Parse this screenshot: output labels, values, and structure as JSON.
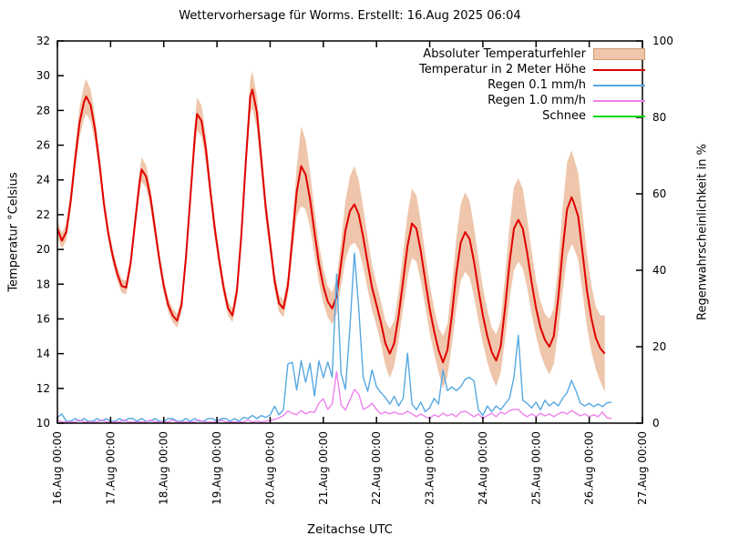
{
  "title": "Wettervorhersage für Worms. Erstellt: 16.Aug 2025 06:04",
  "axes": {
    "left_label": "Temperatur °Celsius",
    "right_label": "Regenwahrscheinlichkeit in %",
    "x_label": "Zeitachse UTC",
    "left_ticks": [
      10,
      12,
      14,
      16,
      18,
      20,
      22,
      24,
      26,
      28,
      30,
      32
    ],
    "right_ticks": [
      0,
      20,
      40,
      60,
      80,
      100
    ],
    "x_ticks": [
      "16.Aug 00:00",
      "17.Aug 00:00",
      "18.Aug 00:00",
      "19.Aug 00:00",
      "20.Aug 00:00",
      "21.Aug 00:00",
      "22.Aug 00:00",
      "23.Aug 00:00",
      "24.Aug 00:00",
      "25.Aug 00:00",
      "26.Aug 00:00",
      "27.Aug 00:00"
    ],
    "left_range": [
      10,
      32
    ],
    "right_range": [
      0,
      100
    ],
    "x_range_hours": [
      0,
      264
    ],
    "grid": false
  },
  "legend": [
    {
      "label": "Absoluter Temperaturfehler",
      "type": "band",
      "color": "#efc6ab"
    },
    {
      "label": "Temperatur in 2 Meter Höhe",
      "type": "line",
      "color": "#e00000"
    },
    {
      "label": "Regen 0.1 mm/h",
      "type": "line",
      "color": "#56a8e2"
    },
    {
      "label": "Regen 1.0 mm/h",
      "type": "line",
      "color": "#ee82ee"
    },
    {
      "label": "Schnee",
      "type": "line",
      "color": "#00d800"
    }
  ],
  "chart_data": {
    "type": "line",
    "title": "Wettervorhersage für Worms. Erstellt: 16.Aug 2025 06:04",
    "xlabel": "Zeitachse UTC",
    "ylabel_left": "Temperatur °Celsius",
    "ylabel_right": "Regenwahrscheinlichkeit in %",
    "x_unit": "hours since 16.Aug 00:00 UTC",
    "temperature": {
      "name": "Temperatur in 2 Meter Höhe",
      "axis": "left",
      "color": "#e00000",
      "band_name": "Absoluter Temperaturfehler",
      "band_color": "#efc6ab",
      "t": [
        0,
        2,
        4,
        6,
        8,
        10,
        12,
        13,
        15,
        17,
        19,
        21,
        23,
        25,
        27,
        29,
        31,
        33,
        35,
        37,
        38,
        40,
        42,
        44,
        46,
        48,
        50,
        52,
        54,
        56,
        58,
        60,
        62,
        63,
        65,
        67,
        69,
        71,
        73,
        75,
        77,
        79,
        81,
        83,
        85,
        87,
        88,
        90,
        92,
        94,
        96,
        98,
        100,
        102,
        104,
        106,
        108,
        110,
        112,
        114,
        116,
        118,
        120,
        122,
        124,
        126,
        128,
        130,
        132,
        134,
        136,
        138,
        140,
        142,
        144,
        146,
        148,
        150,
        152,
        154,
        156,
        158,
        160,
        162,
        164,
        166,
        168,
        170,
        172,
        174,
        176,
        178,
        180,
        182,
        184,
        186,
        188,
        190,
        192,
        194,
        196,
        198,
        200,
        202,
        204,
        206,
        208,
        210,
        212,
        214,
        216,
        218,
        220,
        222,
        224,
        226,
        228,
        230,
        232,
        233,
        235,
        237,
        239,
        241,
        243,
        245,
        247
      ],
      "values": [
        21.2,
        20.5,
        21.0,
        22.8,
        25.2,
        27.3,
        28.5,
        28.8,
        28.3,
        26.9,
        24.9,
        22.6,
        20.9,
        19.6,
        18.6,
        17.9,
        17.8,
        19.2,
        21.5,
        23.8,
        24.6,
        24.2,
        23.0,
        21.2,
        19.4,
        17.9,
        16.8,
        16.2,
        15.9,
        16.8,
        19.5,
        23.0,
        26.5,
        27.8,
        27.4,
        25.8,
        23.4,
        21.2,
        19.4,
        17.8,
        16.6,
        16.2,
        17.6,
        20.8,
        25.0,
        28.8,
        29.2,
        27.9,
        25.2,
        22.4,
        20.3,
        18.2,
        16.9,
        16.6,
        17.9,
        20.6,
        23.3,
        24.8,
        24.3,
        22.9,
        21.0,
        19.2,
        17.9,
        17.0,
        16.6,
        17.3,
        19.2,
        21.1,
        22.2,
        22.6,
        22.0,
        20.7,
        19.2,
        17.8,
        16.8,
        15.8,
        14.6,
        14.0,
        14.6,
        16.2,
        18.2,
        20.2,
        21.5,
        21.2,
        19.9,
        18.2,
        16.6,
        15.3,
        14.2,
        13.5,
        14.2,
        16.2,
        18.6,
        20.4,
        21.0,
        20.6,
        19.3,
        17.7,
        16.2,
        15.0,
        14.1,
        13.6,
        14.4,
        16.6,
        19.2,
        21.2,
        21.7,
        21.2,
        19.8,
        18.1,
        16.6,
        15.5,
        14.8,
        14.4,
        15.0,
        17.2,
        20.0,
        22.3,
        23.0,
        22.7,
        21.9,
        19.8,
        17.6,
        16.0,
        14.9,
        14.3,
        14.0
      ],
      "halfwidth": [
        0.5,
        0.45,
        0.5,
        0.6,
        0.7,
        0.85,
        0.95,
        1.0,
        0.9,
        0.75,
        0.6,
        0.5,
        0.45,
        0.4,
        0.4,
        0.4,
        0.4,
        0.45,
        0.55,
        0.65,
        0.7,
        0.65,
        0.6,
        0.5,
        0.45,
        0.4,
        0.4,
        0.4,
        0.4,
        0.45,
        0.55,
        0.7,
        0.85,
        0.95,
        0.9,
        0.8,
        0.65,
        0.55,
        0.5,
        0.45,
        0.4,
        0.4,
        0.5,
        0.6,
        0.8,
        1.0,
        1.05,
        0.95,
        0.8,
        0.7,
        0.6,
        0.55,
        0.5,
        0.5,
        0.6,
        0.9,
        1.4,
        2.3,
        2.0,
        1.6,
        1.3,
        1.1,
        1.0,
        0.9,
        0.9,
        1.0,
        1.3,
        1.7,
        2.0,
        2.2,
        2.0,
        1.7,
        1.5,
        1.3,
        1.2,
        1.2,
        1.3,
        1.4,
        1.3,
        1.4,
        1.6,
        1.8,
        2.0,
        1.9,
        1.7,
        1.5,
        1.4,
        1.3,
        1.3,
        1.5,
        1.5,
        1.7,
        2.0,
        2.2,
        2.3,
        2.2,
        2.0,
        1.8,
        1.6,
        1.5,
        1.4,
        1.5,
        1.5,
        1.8,
        2.1,
        2.4,
        2.4,
        2.3,
        2.0,
        1.8,
        1.6,
        1.5,
        1.5,
        1.6,
        1.6,
        1.9,
        2.4,
        2.7,
        2.7,
        2.6,
        2.5,
        2.3,
        2.1,
        1.9,
        1.8,
        1.9,
        2.2
      ]
    },
    "rain_01mm": {
      "name": "Regen 0.1 mm/h",
      "axis": "right",
      "color": "#56a8e2",
      "t_start": 0,
      "t_step": 2,
      "values": [
        1.5,
        2.4,
        0.5,
        0.5,
        1.2,
        0.5,
        1.2,
        0.5,
        0.5,
        1.2,
        0.5,
        1.2,
        0.5,
        0.5,
        1.2,
        0.5,
        1.2,
        1.2,
        0.5,
        1.2,
        0.5,
        0.5,
        1.2,
        0.5,
        0.5,
        1.2,
        1.2,
        0.5,
        0.5,
        1.2,
        0.5,
        1.2,
        0.5,
        0.5,
        1.2,
        1.2,
        0.5,
        1.2,
        1.2,
        0.5,
        1.2,
        0.5,
        1.5,
        1.2,
        2.0,
        1.2,
        2.0,
        1.5,
        2.2,
        4.4,
        2.2,
        3.5,
        15.5,
        15.9,
        8.7,
        16.3,
        10.7,
        15.7,
        7.1,
        16.3,
        11.9,
        16.0,
        12.0,
        39.0,
        13.0,
        8.8,
        25.0,
        44.5,
        30.0,
        12.0,
        8.3,
        13.9,
        9.5,
        8.0,
        6.7,
        5.0,
        7.0,
        4.5,
        6.5,
        18.3,
        5.0,
        3.5,
        5.5,
        3.0,
        4.0,
        6.5,
        5.0,
        13.9,
        8.5,
        9.5,
        8.5,
        9.5,
        11.5,
        12.0,
        11.0,
        3.5,
        2.0,
        4.5,
        3.0,
        4.5,
        3.5,
        5.0,
        6.5,
        12.0,
        23.0,
        6.0,
        5.2,
        4.0,
        5.5,
        3.5,
        6.0,
        4.5,
        5.5,
        4.5,
        6.5,
        8.0,
        11.2,
        8.5,
        5.2,
        4.5,
        5.2,
        4.3,
        5.0,
        4.3,
        5.3,
        5.5
      ]
    },
    "rain_10mm": {
      "name": "Regen 1.0 mm/h",
      "axis": "right",
      "color": "#ee82ee",
      "t_start": 0,
      "t_step": 2,
      "values": [
        0.8,
        0.3,
        0.3,
        0.3,
        0.3,
        0.8,
        0.3,
        0.3,
        0.3,
        0.3,
        0.8,
        0.3,
        0.3,
        0.3,
        0.3,
        0.8,
        0.3,
        0.3,
        0.3,
        0.3,
        0.3,
        0.8,
        0.3,
        0.3,
        0.3,
        0.3,
        0.8,
        0.3,
        0.3,
        0.3,
        0.3,
        0.3,
        0.8,
        0.3,
        0.3,
        0.3,
        0.3,
        0.8,
        0.3,
        0.3,
        0.3,
        0.3,
        0.3,
        0.8,
        0.3,
        0.5,
        0.3,
        0.5,
        0.7,
        1.0,
        1.4,
        2.0,
        3.2,
        2.6,
        2.2,
        3.3,
        2.4,
        3.0,
        2.8,
        5.2,
        6.4,
        3.6,
        5.0,
        13.5,
        4.8,
        3.4,
        6.0,
        8.8,
        7.6,
        3.6,
        4.2,
        5.2,
        3.6,
        2.4,
        2.9,
        2.4,
        2.9,
        2.4,
        2.4,
        3.1,
        2.4,
        1.7,
        2.4,
        1.7,
        1.2,
        2.2,
        1.7,
        2.6,
        1.9,
        2.4,
        1.7,
        2.9,
        3.1,
        2.4,
        1.7,
        2.4,
        1.2,
        2.0,
        2.6,
        1.7,
        2.9,
        2.4,
        3.3,
        3.6,
        3.6,
        2.4,
        1.7,
        2.4,
        1.7,
        2.6,
        1.9,
        2.4,
        1.7,
        2.4,
        2.9,
        2.4,
        3.3,
        2.6,
        1.9,
        2.4,
        1.7,
        2.2,
        1.7,
        2.9,
        1.4,
        1.2
      ]
    },
    "schnee": {
      "name": "Schnee",
      "axis": "right",
      "color": "#00d800",
      "t_start": 0,
      "t_step": 2,
      "values": []
    }
  }
}
